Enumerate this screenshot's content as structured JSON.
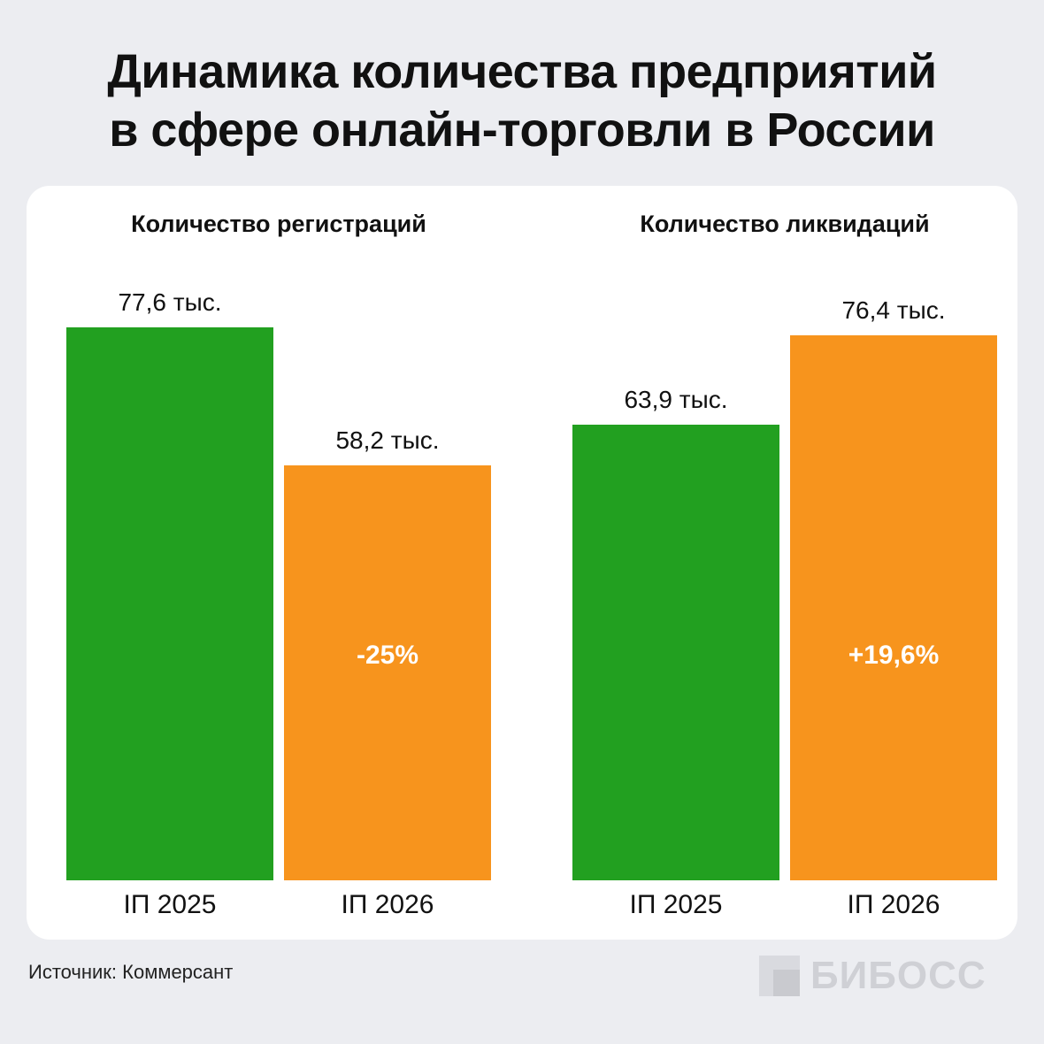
{
  "title_lines": [
    "Динамика количества предприятий",
    "в сфере онлайн-торговли в России"
  ],
  "source": "Источник: Коммерсант",
  "logo": {
    "text": "БИБОСС",
    "icon": "bibos-logo-icon"
  },
  "colors": {
    "green": "#22a020",
    "orange": "#f7941d",
    "background": "#ecedf1",
    "card": "#ffffff"
  },
  "chart_data": [
    {
      "type": "bar",
      "title": "Количество регистраций",
      "categories": [
        "IП 2025",
        "IП 2026"
      ],
      "values": [
        77.6,
        58.2
      ],
      "value_labels": [
        "77,6 тыс.",
        "58,2 тыс."
      ],
      "change_label": "-25%",
      "unit": "тыс.",
      "ylim": [
        0,
        100
      ]
    },
    {
      "type": "bar",
      "title": "Количество ликвидаций",
      "categories": [
        "IП 2025",
        "IП 2026"
      ],
      "values": [
        63.9,
        76.4
      ],
      "value_labels": [
        "63,9 тыс.",
        "76,4 тыс."
      ],
      "change_label": "+19,6%",
      "unit": "тыс.",
      "ylim": [
        0,
        100
      ]
    }
  ]
}
